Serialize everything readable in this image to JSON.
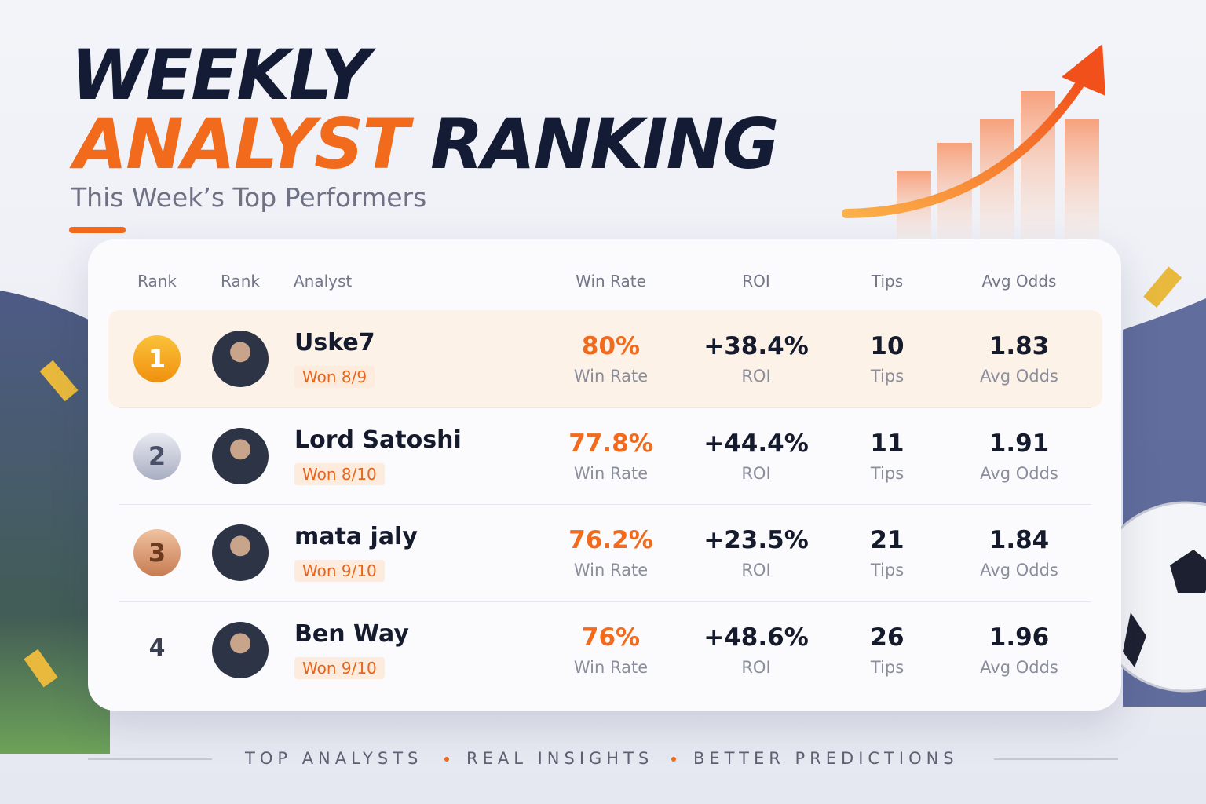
{
  "header": {
    "title_line1": "WEEKLY",
    "title_accent": "ANALYST",
    "title_rest": "RANKING",
    "subtitle": "This Week’s Top Performers"
  },
  "table": {
    "headers": [
      "Rank",
      "Rank",
      "Analyst",
      "Win Rate",
      "ROI",
      "Tips",
      "Avg Odds"
    ],
    "rows": [
      {
        "rank": "1",
        "name": "Uske7",
        "record": "Won 8/9",
        "win_rate": "80%",
        "win_rate_label": "Win Rate",
        "roi": "+38.4%",
        "roi_label": "ROI",
        "tips": "10",
        "tips_label": "Tips",
        "avg_odds": "1.83",
        "avg_odds_label": "Avg Odds"
      },
      {
        "rank": "2",
        "name": "Lord Satoshi",
        "record": "Won 8/10",
        "win_rate": "77.8%",
        "win_rate_label": "Win Rate",
        "roi": "+44.4%",
        "roi_label": "ROI",
        "tips": "11",
        "tips_label": "Tips",
        "avg_odds": "1.91",
        "avg_odds_label": "Avg Odds"
      },
      {
        "rank": "3",
        "name": "mata jaly",
        "record": "Won 9/10",
        "win_rate": "76.2%",
        "win_rate_label": "Win Rate",
        "roi": "+23.5%",
        "roi_label": "ROI",
        "tips": "21",
        "tips_label": "Tips",
        "avg_odds": "1.84",
        "avg_odds_label": "Avg Odds"
      },
      {
        "rank": "4",
        "name": "Ben Way",
        "record": "Won 9/10",
        "win_rate": "76%",
        "win_rate_label": "Win Rate",
        "roi": "+48.6%",
        "roi_label": "ROI",
        "tips": "26",
        "tips_label": "Tips",
        "avg_odds": "1.96",
        "avg_odds_label": "Avg Odds"
      }
    ]
  },
  "footer": {
    "items": [
      "TOP ANALYSTS",
      "REAL INSIGHTS",
      "BETTER PREDICTIONS"
    ]
  }
}
